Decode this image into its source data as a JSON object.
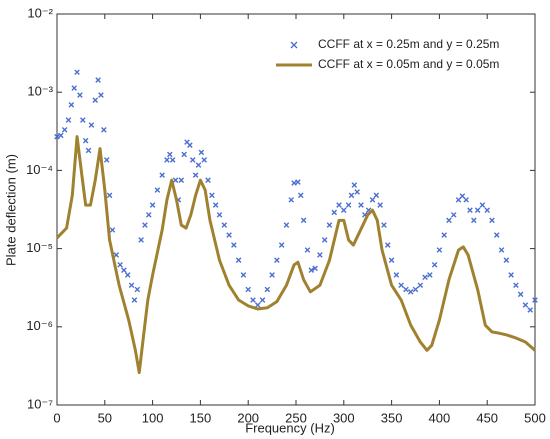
{
  "chart_data": {
    "type": "line",
    "xlabel": "Frequency (Hz)",
    "ylabel": "Plate deflection (m)",
    "xlim": [
      0,
      500
    ],
    "xticks": [
      0,
      50,
      100,
      150,
      200,
      250,
      300,
      350,
      400,
      450,
      500
    ],
    "ylim": [
      1e-07,
      0.01
    ],
    "ylog": true,
    "yticks": [
      {
        "value": 1e-07,
        "label": "10⁻⁷"
      },
      {
        "value": 1e-06,
        "label": "10⁻⁶"
      },
      {
        "value": 1e-05,
        "label": "10⁻⁵"
      },
      {
        "value": 0.0001,
        "label": "10⁻⁴"
      },
      {
        "value": 0.001,
        "label": "10⁻³"
      },
      {
        "value": 0.01,
        "label": "10⁻²"
      }
    ],
    "legend": "upper right",
    "series": [
      {
        "name": "CCFF at x = 0.25m and y = 0.25m",
        "type": "scatter",
        "color": "#4a6fd0",
        "x": [
          0,
          4,
          8,
          12,
          15,
          18,
          21,
          24,
          27,
          30,
          33,
          36,
          40,
          43,
          46,
          49,
          52,
          55,
          58,
          62,
          66,
          70,
          74,
          78,
          81,
          84,
          88,
          92,
          96,
          100,
          105,
          110,
          115,
          118,
          121,
          124,
          127,
          130,
          133,
          136,
          139,
          142,
          145,
          148,
          151,
          154,
          158,
          162,
          166,
          170,
          175,
          180,
          185,
          190,
          195,
          200,
          205,
          210,
          215,
          220,
          225,
          230,
          235,
          240,
          245,
          248,
          252,
          255,
          258,
          262,
          266,
          270,
          275,
          280,
          285,
          290,
          295,
          300,
          305,
          308,
          311,
          314,
          318,
          322,
          326,
          330,
          334,
          338,
          342,
          346,
          350,
          355,
          360,
          365,
          370,
          375,
          380,
          385,
          390,
          395,
          400,
          405,
          410,
          415,
          420,
          424,
          428,
          432,
          436,
          440,
          445,
          450,
          455,
          460,
          465,
          470,
          475,
          480,
          485,
          490,
          495,
          500
        ],
        "values": [
          0.00027,
          0.00028,
          0.00033,
          0.00044,
          0.00069,
          0.00113,
          0.0018,
          0.00092,
          0.00044,
          0.00024,
          0.00018,
          0.00038,
          0.00079,
          0.00143,
          0.00092,
          0.00033,
          0.000136,
          4.8e-05,
          1.73e-05,
          8.3e-06,
          6.2e-06,
          5.3e-06,
          4.6e-06,
          3.4e-06,
          2.2e-06,
          3e-06,
          1.29e-05,
          2e-05,
          2.7e-05,
          3.6e-05,
          5.6e-05,
          8.7e-05,
          0.000136,
          0.00016,
          0.000136,
          7.5e-05,
          4.2e-05,
          7.5e-05,
          0.00016,
          0.00023,
          0.00021,
          0.000136,
          8.7e-05,
          0.000117,
          0.00017,
          0.000136,
          7.5e-05,
          4.8e-05,
          3.6e-05,
          2.7e-05,
          2e-05,
          1.49e-05,
          1.11e-05,
          7.1e-06,
          4.6e-06,
          3e-06,
          2.2e-06,
          1.9e-06,
          2.2e-06,
          3e-06,
          4.6e-06,
          7.1e-06,
          1.11e-05,
          2e-05,
          4.2e-05,
          6.9e-05,
          7.1e-05,
          4.8e-05,
          2.3e-05,
          9.6e-06,
          5.3e-06,
          5.6e-06,
          8.3e-06,
          1.29e-05,
          2e-05,
          2.9e-05,
          3.6e-05,
          3.1e-05,
          3.6e-05,
          4.8e-05,
          6.5e-05,
          5.3e-05,
          3.6e-05,
          2.7e-05,
          3.1e-05,
          4.2e-05,
          4.8e-05,
          3.6e-05,
          2e-05,
          1.11e-05,
          7.1e-06,
          4.6e-06,
          3.4e-06,
          3e-06,
          2.8e-06,
          3e-06,
          3.4e-06,
          4.3e-06,
          4.6e-06,
          6.2e-06,
          9.6e-06,
          1.49e-05,
          2.3e-05,
          2.7e-05,
          4.2e-05,
          4.7e-05,
          4.2e-05,
          3.1e-05,
          2.3e-05,
          3.1e-05,
          3.6e-05,
          3.1e-05,
          2.3e-05,
          1.49e-05,
          9.6e-06,
          7.1e-06,
          4.6e-06,
          3.4e-06,
          2.6e-06,
          1.9e-06,
          1.64e-06,
          2.2e-06
        ]
      },
      {
        "name": "CCFF at x = 0.05m and y = 0.05m",
        "type": "line",
        "color": "#a0812f",
        "x": [
          0,
          10,
          16,
          21,
          26,
          30,
          35,
          40,
          45,
          50,
          55,
          65,
          75,
          82,
          86,
          90,
          95,
          100,
          110,
          115,
          120,
          125,
          130,
          135,
          140,
          145,
          150,
          155,
          160,
          170,
          180,
          190,
          200,
          210,
          220,
          230,
          240,
          248,
          252,
          258,
          265,
          275,
          285,
          295,
          300,
          305,
          310,
          315,
          320,
          325,
          330,
          335,
          340,
          350,
          360,
          370,
          380,
          387,
          392,
          400,
          410,
          420,
          425,
          430,
          440,
          448,
          455,
          460,
          470,
          480,
          490,
          500
        ],
        "values": [
          1.37e-05,
          1.83e-05,
          4.8e-05,
          0.00027,
          8.7e-05,
          3.6e-05,
          3.6e-05,
          7.5e-05,
          0.00019,
          5.6e-05,
          1.29e-05,
          3.4e-06,
          1.22e-06,
          5e-07,
          2.6e-07,
          6.8e-07,
          2.2e-06,
          4.6e-06,
          1.73e-05,
          4.2e-05,
          7.5e-05,
          4.2e-05,
          2e-05,
          1.83e-05,
          2.7e-05,
          4.8e-05,
          7.5e-05,
          5.6e-05,
          2.3e-05,
          7.1e-06,
          3.4e-06,
          2.2e-06,
          1.85e-06,
          1.69e-06,
          1.75e-06,
          2.1e-06,
          3.4e-06,
          6.2e-06,
          6.7e-06,
          4e-06,
          2.8e-06,
          3.4e-06,
          7.1e-06,
          2.3e-05,
          2.3e-05,
          1.29e-05,
          1.11e-05,
          1.49e-05,
          2e-05,
          2.7e-05,
          3.1e-05,
          2.3e-05,
          9.6e-06,
          3.4e-06,
          2.2e-06,
          1.05e-06,
          6.4e-07,
          5e-07,
          5.8e-07,
          1.22e-06,
          4e-06,
          9.6e-06,
          1.05e-05,
          8.3e-06,
          3e-06,
          1.05e-06,
          8.6e-07,
          8.4e-07,
          7.9e-07,
          7.2e-07,
          6.4e-07,
          5e-07
        ]
      }
    ]
  }
}
